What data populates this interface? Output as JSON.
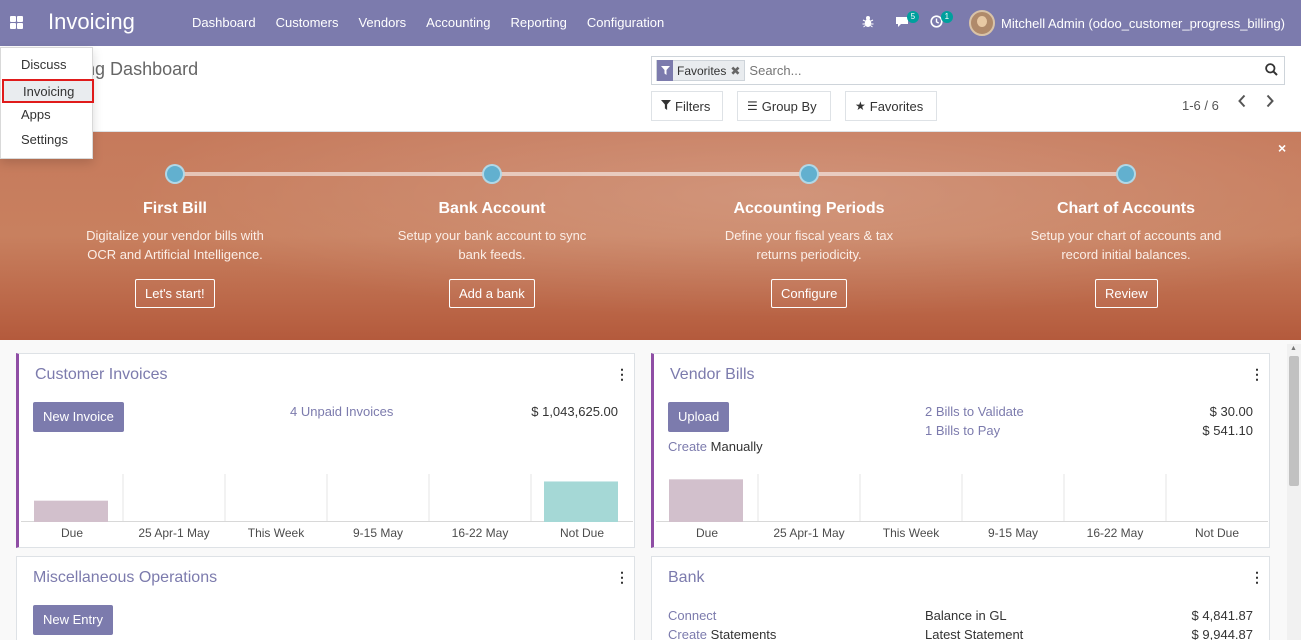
{
  "navbar": {
    "brand": "Invoicing",
    "menu": [
      "Dashboard",
      "Customers",
      "Vendors",
      "Accounting",
      "Reporting",
      "Configuration"
    ],
    "messages_count": "5",
    "activities_count": "1",
    "user": "Mitchell Admin (odoo_customer_progress_billing)"
  },
  "apps_dropdown": {
    "items": [
      "Discuss",
      "Invoicing",
      "Apps",
      "Settings"
    ],
    "selected": "Invoicing"
  },
  "control_panel": {
    "breadcrumb": "Accounting Dashboard",
    "search": {
      "facet": "Favorites",
      "placeholder": "Search..."
    },
    "filters_label": "Filters",
    "groupby_label": "Group By",
    "favorites_label": "Favorites",
    "pager": "1-6 / 6"
  },
  "onboarding": {
    "steps": [
      {
        "title": "First Bill",
        "desc1": "Digitalize your vendor bills with",
        "desc2": "OCR and Artificial Intelligence.",
        "button": "Let's start!"
      },
      {
        "title": "Bank Account",
        "desc1": "Setup your bank account to sync",
        "desc2": "bank feeds.",
        "button": "Add a bank"
      },
      {
        "title": "Accounting Periods",
        "desc1": "Define your fiscal years & tax",
        "desc2": "returns periodicity.",
        "button": "Configure"
      },
      {
        "title": "Chart of Accounts",
        "desc1": "Setup your chart of accounts and",
        "desc2": "record initial balances.",
        "button": "Review"
      }
    ],
    "close": "×"
  },
  "customer_invoices": {
    "title": "Customer Invoices",
    "button": "New Invoice",
    "unpaid_link": "4 Unpaid Invoices",
    "unpaid_amount": "$ 1,043,625.00",
    "colors": {
      "past": "#d2c0cc",
      "future": "#a5d8d6"
    }
  },
  "vendor_bills": {
    "title": "Vendor Bills",
    "button": "Upload",
    "create_link": "Create",
    "create_suffix": "Manually",
    "validate_link": "2 Bills to Validate",
    "validate_amount": "$ 30.00",
    "pay_link": "1 Bills to Pay",
    "pay_amount": "$ 541.10"
  },
  "chart_data": [
    {
      "type": "bar",
      "categories": [
        "Due",
        "25 Apr-1 May",
        "This Week",
        "9-15 May",
        "16-22 May",
        "Not Due"
      ],
      "values": [
        20,
        0,
        0,
        0,
        0,
        38
      ],
      "ylim": [
        0,
        45
      ]
    },
    {
      "type": "bar",
      "categories": [
        "Due",
        "25 Apr-1 May",
        "This Week",
        "9-15 May",
        "16-22 May",
        "Not Due"
      ],
      "values": [
        40,
        0,
        0,
        0,
        0,
        0
      ],
      "ylim": [
        0,
        45
      ]
    }
  ],
  "misc_operations": {
    "title": "Miscellaneous Operations",
    "button": "New Entry"
  },
  "bank": {
    "title": "Bank",
    "connect_link": "Connect",
    "create_link": "Create",
    "create_suffix": "Statements",
    "balance_label": "Balance in GL",
    "balance_amount": "$ 4,841.87",
    "latest_label": "Latest Statement",
    "latest_amount": "$ 9,944.87"
  }
}
